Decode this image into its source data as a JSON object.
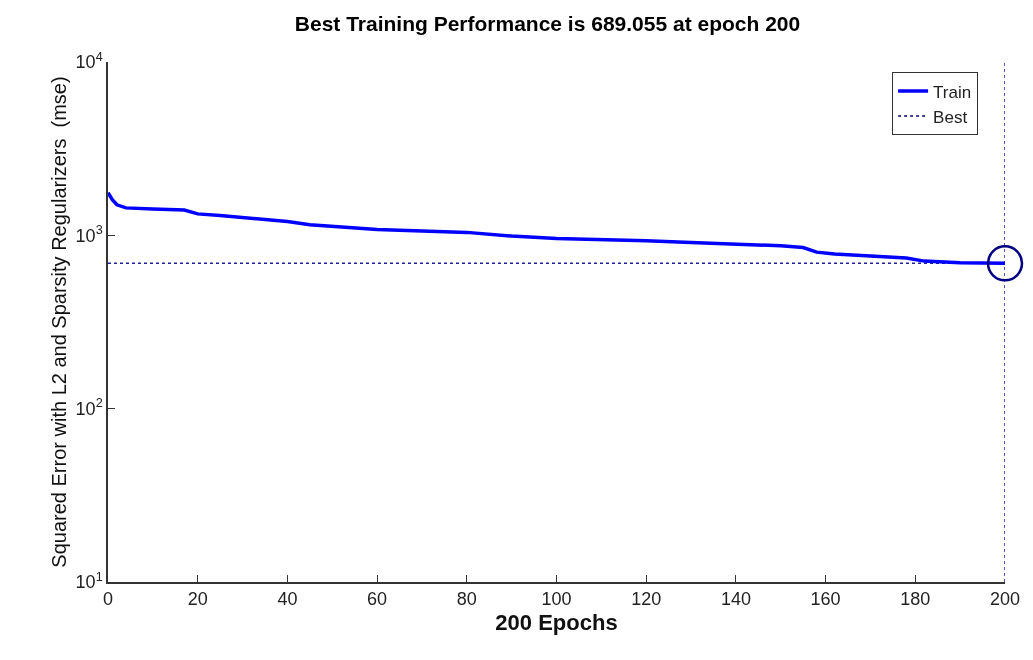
{
  "chart_data": {
    "type": "line",
    "title": "Best Training Performance is 689.055 at epoch 200",
    "xlabel": "200 Epochs",
    "ylabel": "Squared Error with L2 and Sparsity Regularizers  (mse)",
    "log": "y",
    "grid": false,
    "legend": "top right",
    "xlim": [
      0,
      200
    ],
    "xticks": [
      0,
      20,
      40,
      60,
      80,
      100,
      120,
      140,
      160,
      180,
      200
    ],
    "ylim": [
      10,
      10000
    ],
    "yticks": [
      {
        "value": 10,
        "label": "10$^{1}$"
      },
      {
        "value": 100,
        "label": "10$^{2}$"
      },
      {
        "value": 1000,
        "label": "10$^{3}$"
      },
      {
        "value": 10000,
        "label": "10$^{4}$"
      }
    ],
    "series": [
      {
        "name": "Train",
        "color": "#0000ff",
        "line_style": "solid",
        "x": [
          0,
          1,
          2,
          4,
          10,
          17,
          20,
          25,
          40,
          45,
          60,
          80,
          90,
          100,
          120,
          130,
          150,
          155,
          158,
          162,
          170,
          178,
          182,
          190,
          200
        ],
        "values": [
          1760,
          1600,
          1500,
          1440,
          1420,
          1400,
          1330,
          1300,
          1200,
          1150,
          1080,
          1040,
          990,
          960,
          930,
          910,
          870,
          850,
          800,
          780,
          760,
          740,
          710,
          695,
          689.055
        ]
      },
      {
        "name": "Best",
        "type": "scatter",
        "color": "#000080",
        "marker": "circle",
        "x": [
          200
        ],
        "values": [
          689.055
        ]
      }
    ],
    "ref_lines": [
      {
        "axis": "y",
        "value": 689.055,
        "color": "#2020a0",
        "line_style": "dotted"
      },
      {
        "axis": "x",
        "value": 200,
        "color": "#2020a0",
        "line_style": "dotted"
      }
    ]
  }
}
